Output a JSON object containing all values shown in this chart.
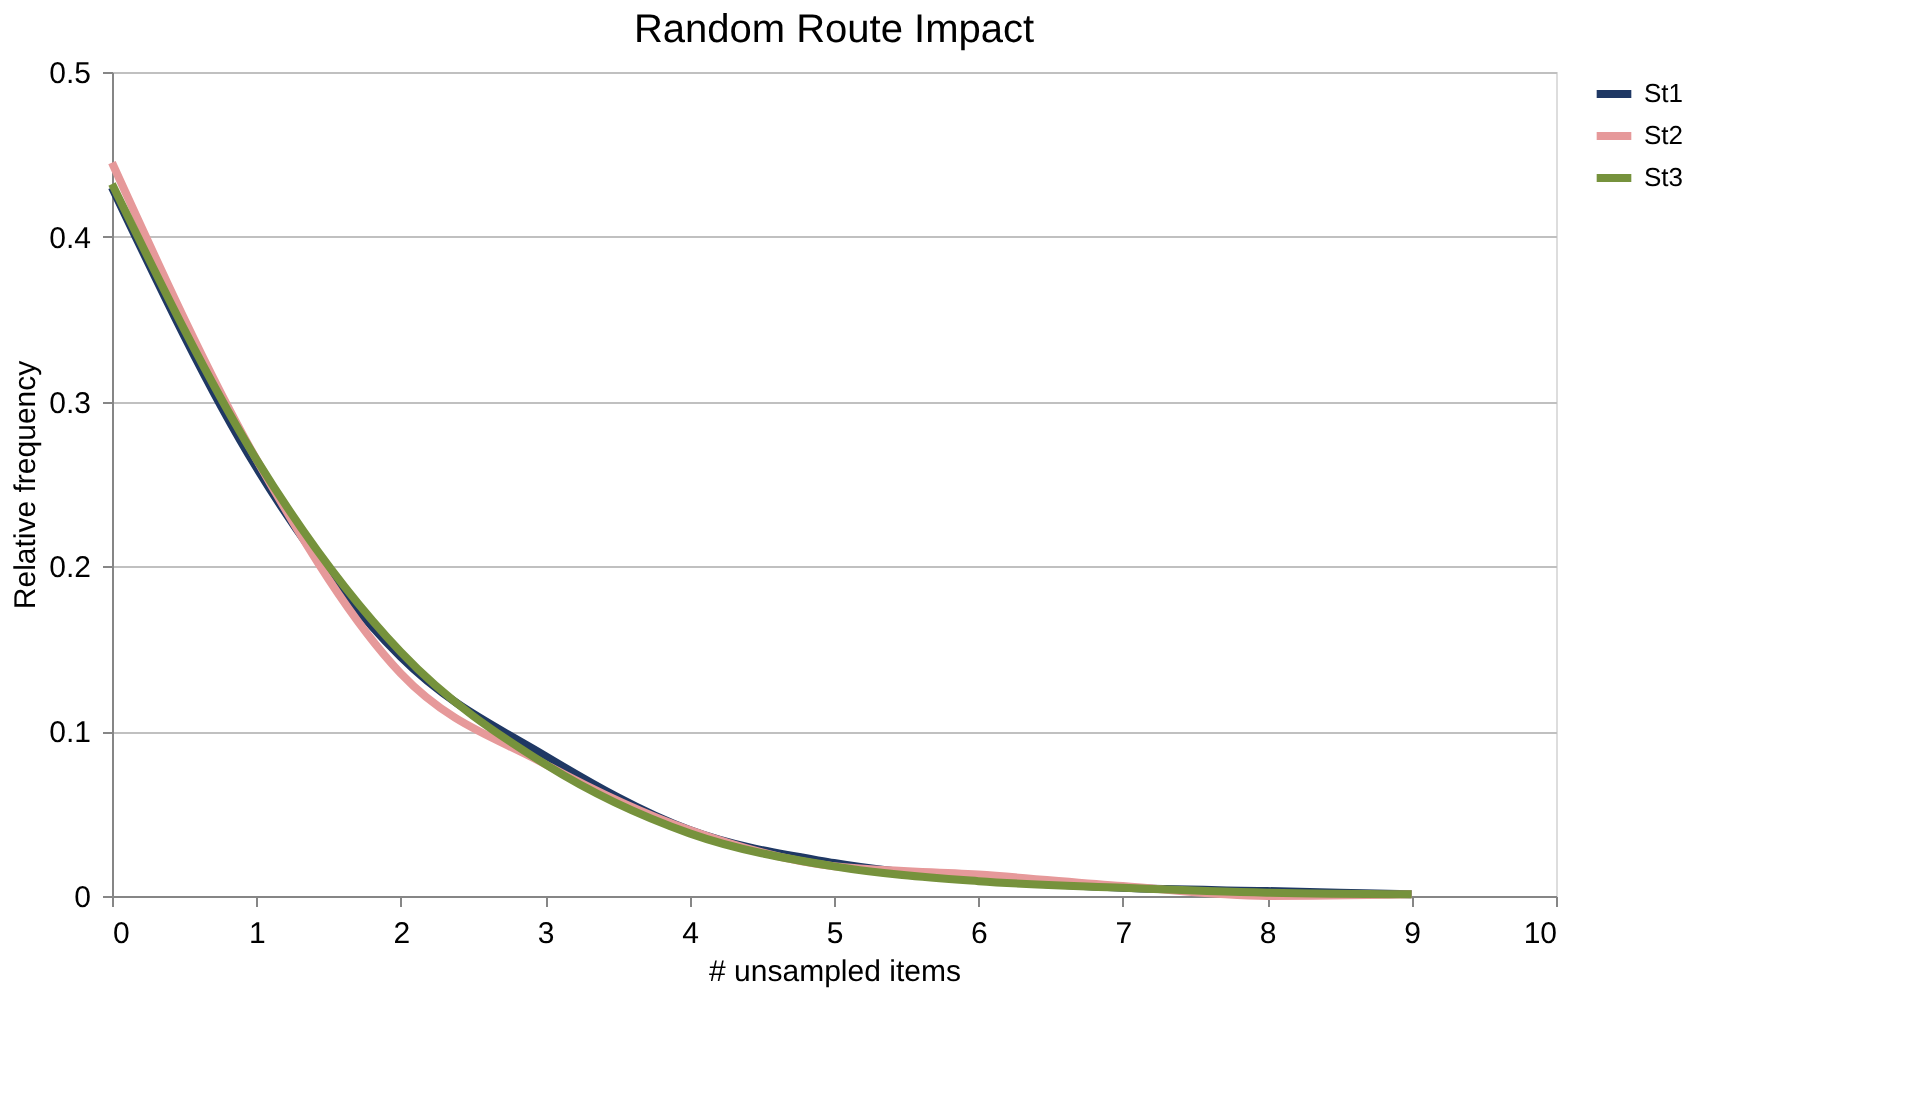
{
  "chart_data": {
    "type": "line",
    "title": "Random Route Impact",
    "xlabel": "# unsampled items",
    "ylabel": "Relative frequency",
    "x": [
      0,
      1,
      2,
      3,
      4,
      5,
      6,
      7,
      8,
      9
    ],
    "series": [
      {
        "name": "St1",
        "color": "#1f3864",
        "values": [
          0.43,
          0.26,
          0.145,
          0.085,
          0.04,
          0.02,
          0.01,
          0.005,
          0.003,
          0.001
        ]
      },
      {
        "name": "St2",
        "color": "#e6999a",
        "values": [
          0.445,
          0.265,
          0.135,
          0.08,
          0.04,
          0.018,
          0.013,
          0.006,
          0.0,
          0.001
        ]
      },
      {
        "name": "St3",
        "color": "#76923c",
        "values": [
          0.432,
          0.265,
          0.148,
          0.08,
          0.038,
          0.018,
          0.009,
          0.005,
          0.002,
          0.001
        ]
      }
    ],
    "xlim": [
      0,
      10
    ],
    "xticks": [
      0,
      1,
      2,
      3,
      4,
      5,
      6,
      7,
      8,
      9,
      10
    ],
    "ylim": [
      0,
      0.5
    ],
    "yticks": [
      0,
      0.1,
      0.2,
      0.3,
      0.4,
      0.5
    ],
    "grid": "y",
    "legend": "right",
    "marker": "none",
    "line_style": "solid"
  }
}
